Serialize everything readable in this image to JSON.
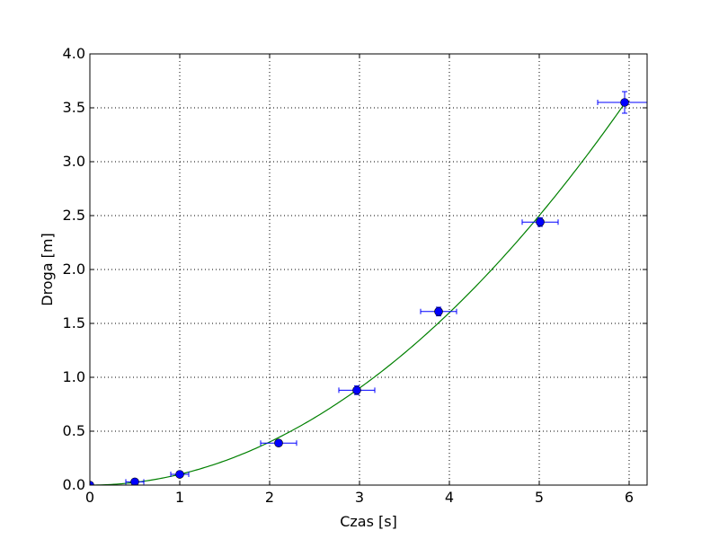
{
  "chart_data": {
    "type": "scatter",
    "title": "",
    "xlabel": "Czas [s]",
    "ylabel": "Droga [m]",
    "xlim": [
      0,
      6.2
    ],
    "ylim": [
      0,
      4.0
    ],
    "grid": true,
    "x_ticks": [
      0,
      1,
      2,
      3,
      4,
      5,
      6
    ],
    "x_tick_labels": [
      "0",
      "1",
      "2",
      "3",
      "4",
      "5",
      "6"
    ],
    "y_ticks": [
      0,
      0.5,
      1.0,
      1.5,
      2.0,
      2.5,
      3.0,
      3.5,
      4.0
    ],
    "y_tick_labels": [
      "0.0",
      "0.5",
      "1.0",
      "1.5",
      "2.0",
      "2.5",
      "3.0",
      "3.5",
      "4.0"
    ],
    "series": [
      {
        "kind": "errorbar-points",
        "color": "#0000ff",
        "points": [
          {
            "x": 0.0,
            "y": 0.0,
            "xerr": 0.0,
            "yerr": 0.0
          },
          {
            "x": 0.5,
            "y": 0.03,
            "xerr": 0.1,
            "yerr": 0.005
          },
          {
            "x": 1.0,
            "y": 0.1,
            "xerr": 0.1,
            "yerr": 0.01
          },
          {
            "x": 2.1,
            "y": 0.39,
            "xerr": 0.2,
            "yerr": 0.02
          },
          {
            "x": 2.97,
            "y": 0.88,
            "xerr": 0.2,
            "yerr": 0.04
          },
          {
            "x": 3.88,
            "y": 1.61,
            "xerr": 0.2,
            "yerr": 0.04
          },
          {
            "x": 5.01,
            "y": 2.44,
            "xerr": 0.2,
            "yerr": 0.04
          },
          {
            "x": 5.95,
            "y": 3.55,
            "xerr": 0.3,
            "yerr": 0.1
          }
        ]
      },
      {
        "kind": "fit-curve",
        "color": "#008000",
        "model": "y = a * x^2",
        "a": 0.1,
        "x_range": [
          0,
          5.95
        ]
      }
    ]
  }
}
